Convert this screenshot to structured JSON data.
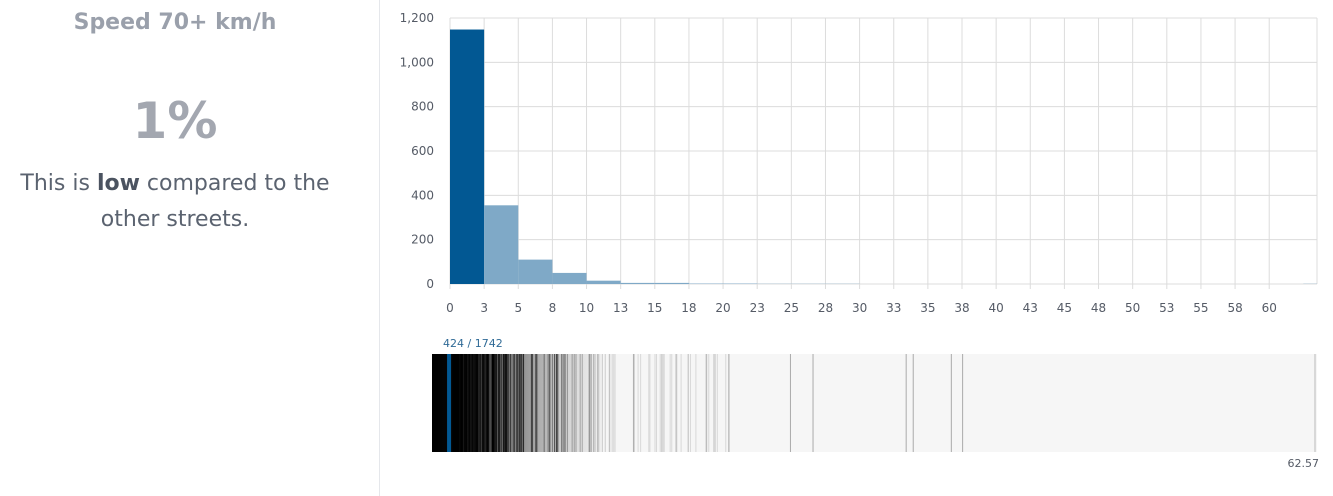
{
  "metric": {
    "title": "Speed 70+ km/h",
    "value": "1%",
    "text_prefix": "This is ",
    "text_bold": "low",
    "text_suffix": " compared to the other streets."
  },
  "colors": {
    "highlight_bar": "#025893",
    "bar": "#7fa9c7",
    "grid": "#dcdcdc",
    "axis_text": "#555b66"
  },
  "chart_data": {
    "type": "bar",
    "title": "",
    "xlabel": "",
    "ylabel": "",
    "ylim": [
      0,
      1200
    ],
    "xlim": [
      0,
      63.5
    ],
    "y_ticks": [
      0,
      200,
      400,
      600,
      800,
      1000,
      1200
    ],
    "y_tick_labels": [
      "0",
      "200",
      "400",
      "600",
      "800",
      "1,000",
      "1,200"
    ],
    "x_ticks": [
      0,
      2.5,
      5,
      7.5,
      10,
      12.5,
      15,
      17.5,
      20,
      22.5,
      25,
      27.5,
      30,
      32.5,
      35,
      37.5,
      40,
      42.5,
      45,
      47.5,
      50,
      52.5,
      55,
      57.5,
      60
    ],
    "x_tick_labels": [
      "0",
      "3",
      "5",
      "8",
      "10",
      "13",
      "15",
      "18",
      "20",
      "23",
      "25",
      "28",
      "30",
      "33",
      "35",
      "38",
      "40",
      "43",
      "45",
      "48",
      "50",
      "53",
      "55",
      "58",
      "60"
    ],
    "grid": true,
    "bin_width": 2.5,
    "bins_start": [
      0,
      2.5,
      5,
      7.5,
      10,
      12.5,
      15,
      17.5,
      20,
      22.5,
      25,
      27.5,
      30,
      32.5,
      35,
      37.5,
      40,
      42.5,
      45,
      47.5,
      50,
      52.5,
      55,
      57.5,
      60,
      62.5
    ],
    "values": [
      1148,
      355,
      110,
      50,
      15,
      5,
      5,
      2,
      2,
      1,
      1,
      1,
      0,
      0,
      0,
      0,
      0,
      0,
      0,
      0,
      0,
      0,
      0,
      0,
      0,
      1
    ],
    "highlight_bin": 0
  },
  "strip": {
    "label": "424 / 1742",
    "max_label": "62.57",
    "max_value": 62.57,
    "current_value": 0.5,
    "dense_end": 0.6
  }
}
